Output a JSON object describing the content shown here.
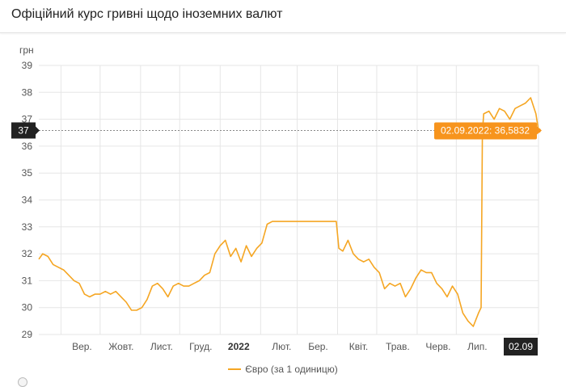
{
  "header": {
    "title": "Офіційний курс гривні щодо іноземних валют"
  },
  "legend": {
    "label": "Євро (за 1 одиницю)"
  },
  "colors": {
    "series": "#f5a623",
    "crosshair": "#222222",
    "tooltip_bg": "#f7941d",
    "grid": "#e6e6e6"
  },
  "chart_data": {
    "type": "line",
    "ylabel": "грн",
    "ylim": [
      29,
      39
    ],
    "yticks": [
      "29",
      "30",
      "31",
      "32",
      "33",
      "34",
      "35",
      "36",
      "37",
      "38",
      "39"
    ],
    "xlim": [
      "2021-08-15",
      "2022-09-02"
    ],
    "xticks": [
      {
        "label": "Вер.",
        "date": "2021-09-01",
        "bold": false
      },
      {
        "label": "Жовт.",
        "date": "2021-10-01",
        "bold": false
      },
      {
        "label": "Лист.",
        "date": "2021-11-01",
        "bold": false
      },
      {
        "label": "Груд.",
        "date": "2021-12-01",
        "bold": false
      },
      {
        "label": "2022",
        "date": "2022-01-01",
        "bold": true
      },
      {
        "label": "Лют.",
        "date": "2022-02-01",
        "bold": false
      },
      {
        "label": "Бер.",
        "date": "2022-03-01",
        "bold": false
      },
      {
        "label": "Квіт.",
        "date": "2022-04-01",
        "bold": false
      },
      {
        "label": "Трав.",
        "date": "2022-05-01",
        "bold": false
      },
      {
        "label": "Черв.",
        "date": "2022-06-01",
        "bold": false
      },
      {
        "label": "Лип.",
        "date": "2022-07-01",
        "bold": false
      }
    ],
    "series": [
      {
        "name": "Євро (за 1 одиницю)",
        "x": [
          "2021-08-15",
          "2021-08-18",
          "2021-08-22",
          "2021-08-26",
          "2021-08-30",
          "2021-09-03",
          "2021-09-07",
          "2021-09-11",
          "2021-09-15",
          "2021-09-19",
          "2021-09-23",
          "2021-09-27",
          "2021-10-01",
          "2021-10-05",
          "2021-10-09",
          "2021-10-13",
          "2021-10-17",
          "2021-10-21",
          "2021-10-25",
          "2021-10-29",
          "2021-11-02",
          "2021-11-06",
          "2021-11-10",
          "2021-11-14",
          "2021-11-18",
          "2021-11-22",
          "2021-11-26",
          "2021-11-30",
          "2021-12-04",
          "2021-12-08",
          "2021-12-12",
          "2021-12-16",
          "2021-12-20",
          "2021-12-24",
          "2021-12-28",
          "2022-01-01",
          "2022-01-05",
          "2022-01-09",
          "2022-01-13",
          "2022-01-17",
          "2022-01-21",
          "2022-01-25",
          "2022-01-29",
          "2022-02-02",
          "2022-02-06",
          "2022-02-10",
          "2022-02-14",
          "2022-02-18",
          "2022-02-22",
          "2022-02-24",
          "2022-03-01",
          "2022-03-10",
          "2022-03-20",
          "2022-03-31",
          "2022-04-02",
          "2022-04-05",
          "2022-04-09",
          "2022-04-13",
          "2022-04-17",
          "2022-04-21",
          "2022-04-25",
          "2022-04-29",
          "2022-05-03",
          "2022-05-07",
          "2022-05-11",
          "2022-05-15",
          "2022-05-19",
          "2022-05-23",
          "2022-05-27",
          "2022-05-31",
          "2022-06-04",
          "2022-06-08",
          "2022-06-12",
          "2022-06-16",
          "2022-06-20",
          "2022-06-24",
          "2022-06-28",
          "2022-07-02",
          "2022-07-06",
          "2022-07-10",
          "2022-07-14",
          "2022-07-18",
          "2022-07-20",
          "2022-07-21",
          "2022-07-22",
          "2022-07-26",
          "2022-07-30",
          "2022-08-03",
          "2022-08-07",
          "2022-08-11",
          "2022-08-15",
          "2022-08-19",
          "2022-08-23",
          "2022-08-27",
          "2022-08-31",
          "2022-09-02"
        ],
        "values": [
          31.8,
          32.0,
          31.9,
          31.6,
          31.5,
          31.4,
          31.2,
          31.0,
          30.9,
          30.5,
          30.4,
          30.5,
          30.5,
          30.6,
          30.5,
          30.6,
          30.4,
          30.2,
          29.9,
          29.9,
          30.0,
          30.3,
          30.8,
          30.9,
          30.7,
          30.4,
          30.8,
          30.9,
          30.8,
          30.8,
          30.9,
          31.0,
          31.2,
          31.3,
          32.0,
          32.3,
          32.5,
          31.9,
          32.2,
          31.7,
          32.3,
          31.9,
          32.2,
          32.4,
          33.1,
          33.2,
          33.2,
          33.2,
          33.2,
          33.2,
          33.2,
          33.2,
          33.2,
          33.2,
          32.2,
          32.1,
          32.5,
          32.0,
          31.8,
          31.7,
          31.8,
          31.5,
          31.3,
          30.7,
          30.9,
          30.8,
          30.9,
          30.4,
          30.7,
          31.1,
          31.4,
          31.3,
          31.3,
          30.9,
          30.7,
          30.4,
          30.8,
          30.5,
          29.8,
          29.5,
          29.3,
          29.8,
          30.0,
          36.5,
          37.2,
          37.3,
          37.0,
          37.4,
          37.3,
          37.0,
          37.4,
          37.5,
          37.6,
          37.8,
          37.2,
          36.58
        ]
      }
    ],
    "tooltip": {
      "text": "02.09.2022: 36,5832",
      "date": "2022-09-02",
      "value": 36.5832
    },
    "crosshair": {
      "y_label": "37",
      "x_label": "02.09"
    },
    "grid": true,
    "legend_position": "bottom-center"
  }
}
